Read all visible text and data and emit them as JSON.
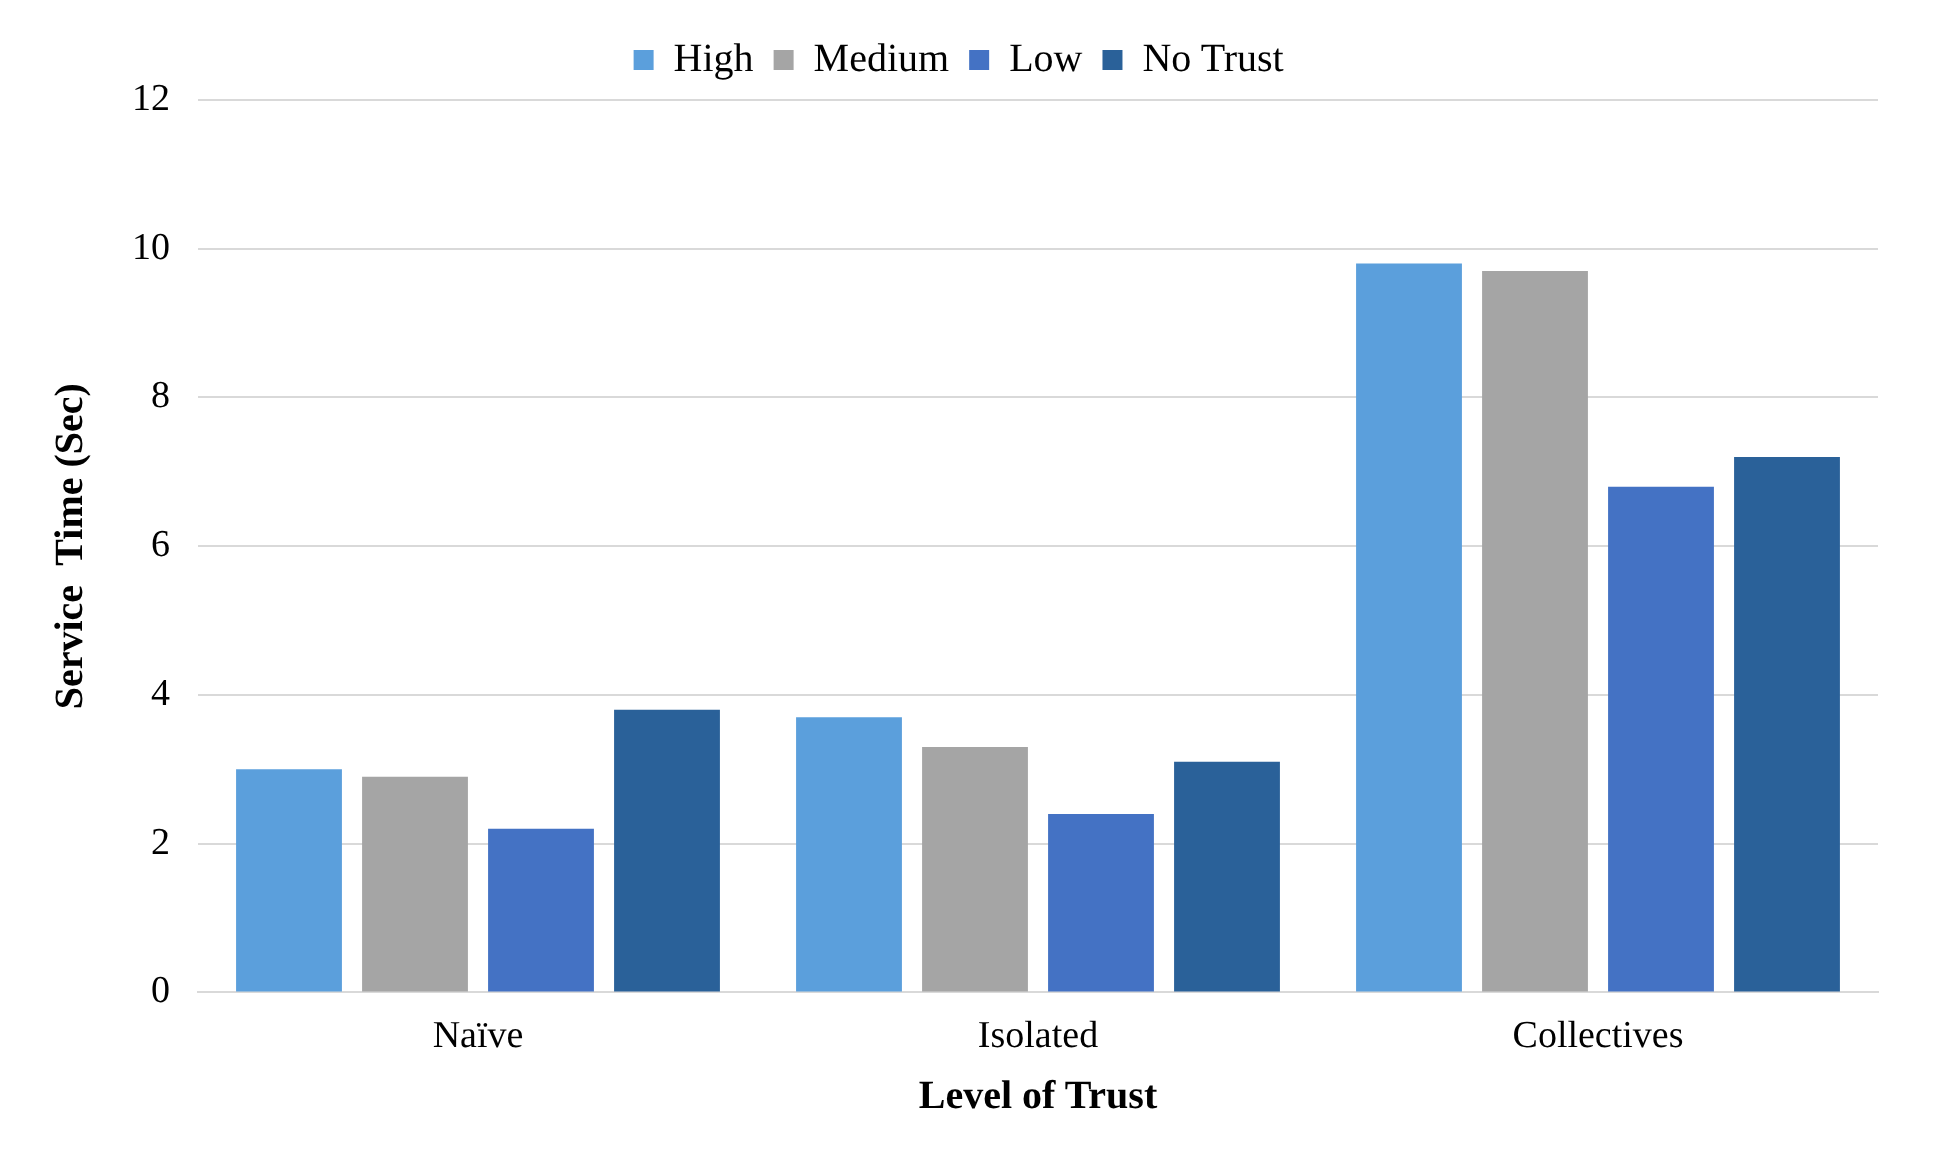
{
  "chart_data": {
    "type": "bar",
    "xlabel": "Level of Trust",
    "ylabel": "Service  Time (Sec)",
    "categories": [
      "Naïve",
      "Isolated",
      "Collectives"
    ],
    "series": [
      {
        "name": "High",
        "color": "#5b9fdc",
        "values": [
          3.0,
          3.7,
          9.8
        ]
      },
      {
        "name": "Medium",
        "color": "#a5a5a5",
        "values": [
          2.9,
          3.3,
          9.7
        ]
      },
      {
        "name": "Low",
        "color": "#4472c4",
        "values": [
          2.2,
          2.4,
          6.8
        ]
      },
      {
        "name": "No Trust",
        "color": "#2a6199",
        "values": [
          3.8,
          3.1,
          7.2
        ]
      }
    ],
    "ylim": [
      0,
      12
    ],
    "yticks": [
      0,
      2,
      4,
      6,
      8,
      10,
      12
    ],
    "grid": "y",
    "legend": "top"
  }
}
